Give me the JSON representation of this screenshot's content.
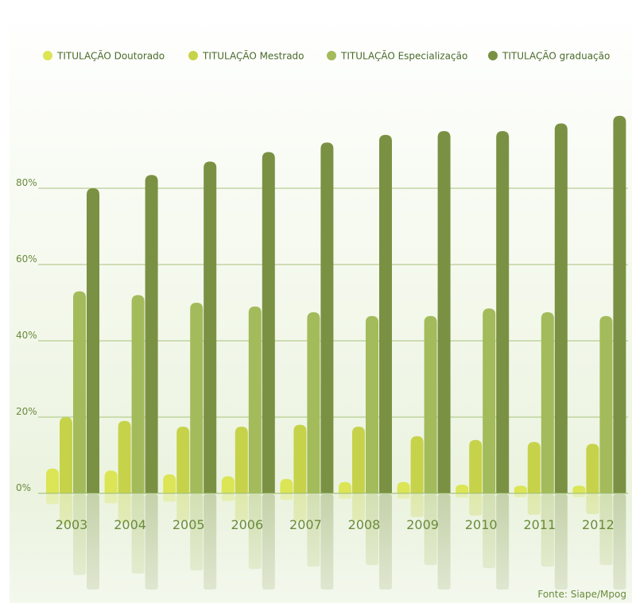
{
  "chart_data": {
    "type": "bar",
    "title": "",
    "xlabel": "",
    "ylabel": "",
    "ylim": [
      0,
      100
    ],
    "yticks": [
      0,
      20,
      40,
      60,
      80
    ],
    "ytick_labels": [
      "0%",
      "20%",
      "40%",
      "60%",
      "80%"
    ],
    "grid": true,
    "legend_position": "top",
    "categories": [
      "2003",
      "2004",
      "2005",
      "2006",
      "2007",
      "2008",
      "2009",
      "2010",
      "2011",
      "2012"
    ],
    "series": [
      {
        "name": "TITULAÇÃO Doutorado",
        "color": "#dbe555",
        "values": [
          6.5,
          6,
          5,
          4.5,
          3.8,
          3,
          3,
          2.3,
          2,
          2
        ]
      },
      {
        "name": "TITULAÇÃO Mestrado",
        "color": "#c6d34a",
        "values": [
          20,
          19,
          17.5,
          17.5,
          18,
          17.5,
          15,
          14,
          13.5,
          13
        ]
      },
      {
        "name": "TITULAÇÃO Especialização",
        "color": "#a3bb5b",
        "values": [
          53,
          52,
          50,
          49,
          47.5,
          46.5,
          46.5,
          48.5,
          47.5,
          46.5
        ]
      },
      {
        "name": "TITULAÇÃO graduação",
        "color": "#7a9143",
        "values": [
          80,
          83.5,
          87,
          89.5,
          92,
          94,
          95,
          95,
          97,
          99
        ]
      }
    ],
    "source": "Fonte: Siape/Mpog"
  }
}
